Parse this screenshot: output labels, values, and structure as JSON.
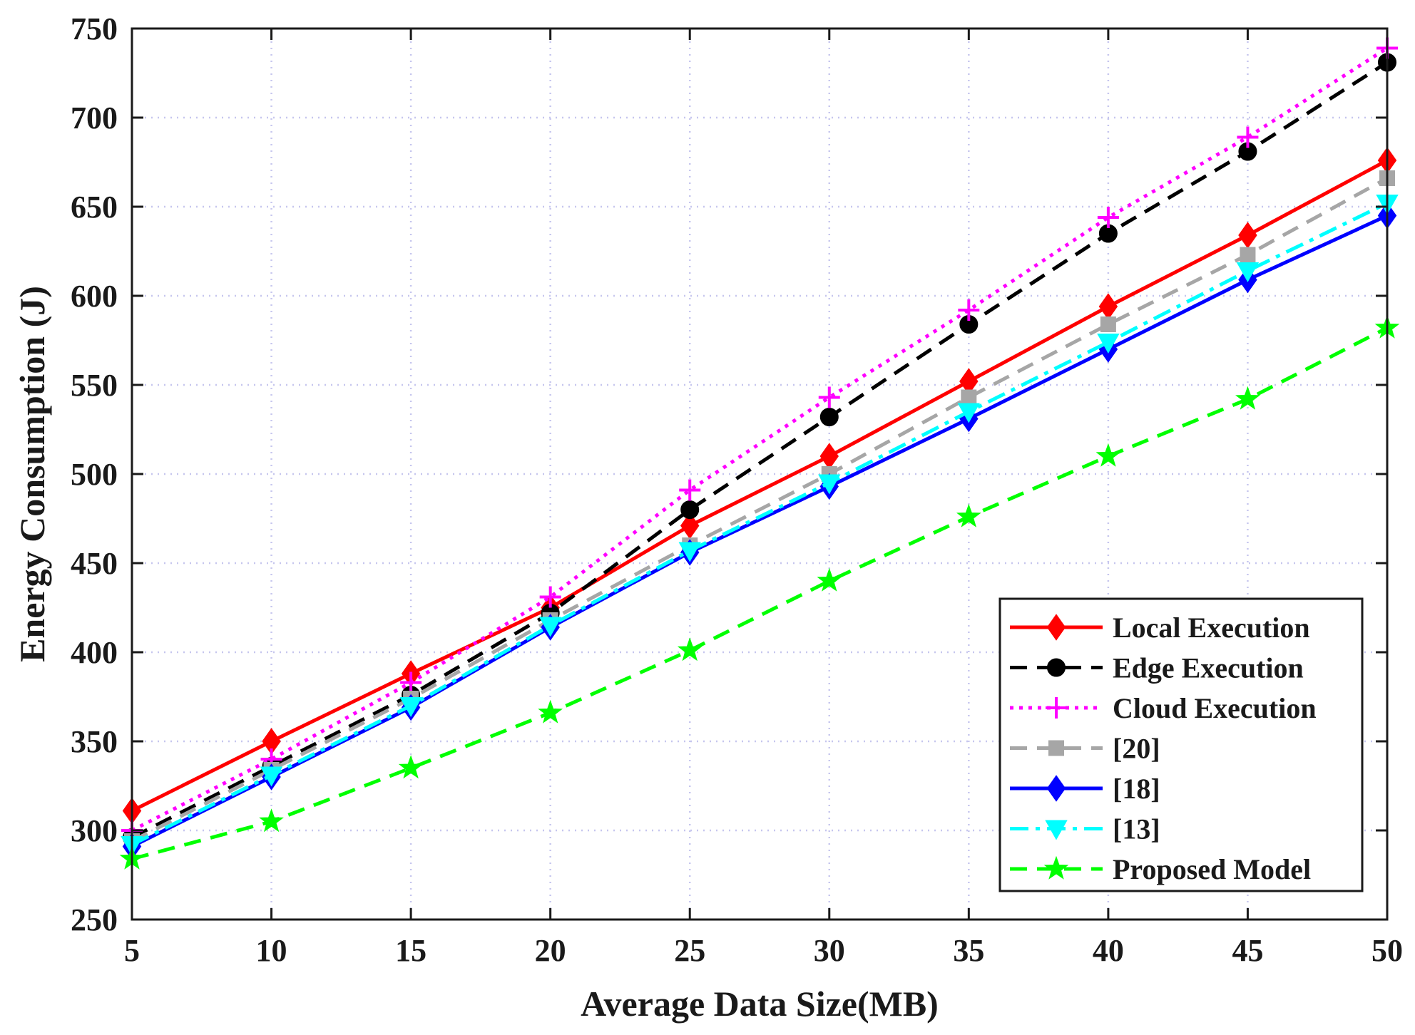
{
  "chart_data": {
    "type": "line",
    "title": "",
    "xlabel": "Average Data Size(MB)",
    "ylabel": "Energy Consumption (J)",
    "x": [
      5,
      10,
      15,
      20,
      25,
      30,
      35,
      40,
      45,
      50
    ],
    "xlim": [
      5,
      50
    ],
    "ylim": [
      250,
      750
    ],
    "xticks": [
      "5",
      "10",
      "15",
      "20",
      "25",
      "30",
      "35",
      "40",
      "45",
      "50"
    ],
    "yticks": [
      "250",
      "300",
      "350",
      "400",
      "450",
      "500",
      "550",
      "600",
      "650",
      "700",
      "750"
    ],
    "grid": true,
    "legend_position": "bottom-right",
    "series": [
      {
        "name": "Local Execution",
        "color": "#ff0000",
        "line_style": "solid",
        "marker": "diamond",
        "values": [
          311,
          350,
          388,
          425,
          471,
          510,
          552,
          594,
          634,
          676
        ]
      },
      {
        "name": "Edge Execution",
        "color": "#000000",
        "line_style": "dashed",
        "marker": "circle",
        "values": [
          296,
          336,
          376,
          422,
          480,
          532,
          584,
          635,
          681,
          731
        ]
      },
      {
        "name": "Cloud Execution",
        "color": "#ff00ff",
        "line_style": "dotted",
        "marker": "plus",
        "values": [
          300,
          340,
          383,
          431,
          491,
          543,
          592,
          644,
          689,
          739
        ]
      },
      {
        "name": "[20]",
        "color": "#a6a6a6",
        "line_style": "dashed",
        "marker": "square",
        "values": [
          294,
          334,
          374,
          418,
          460,
          500,
          543,
          584,
          623,
          666
        ]
      },
      {
        "name": "[18]",
        "color": "#0000ff",
        "line_style": "solid",
        "marker": "diamond",
        "values": [
          291,
          330,
          369,
          414,
          456,
          493,
          531,
          570,
          609,
          645
        ]
      },
      {
        "name": "[13]",
        "color": "#00ffff",
        "line_style": "dashdot",
        "marker": "triangle-down",
        "values": [
          292,
          331,
          370,
          415,
          457,
          495,
          535,
          574,
          614,
          652
        ]
      },
      {
        "name": "Proposed Model",
        "color": "#00ff00",
        "line_style": "dashed",
        "marker": "pentagram",
        "values": [
          284,
          305,
          335,
          366,
          401,
          440,
          476,
          510,
          542,
          582
        ]
      }
    ]
  }
}
